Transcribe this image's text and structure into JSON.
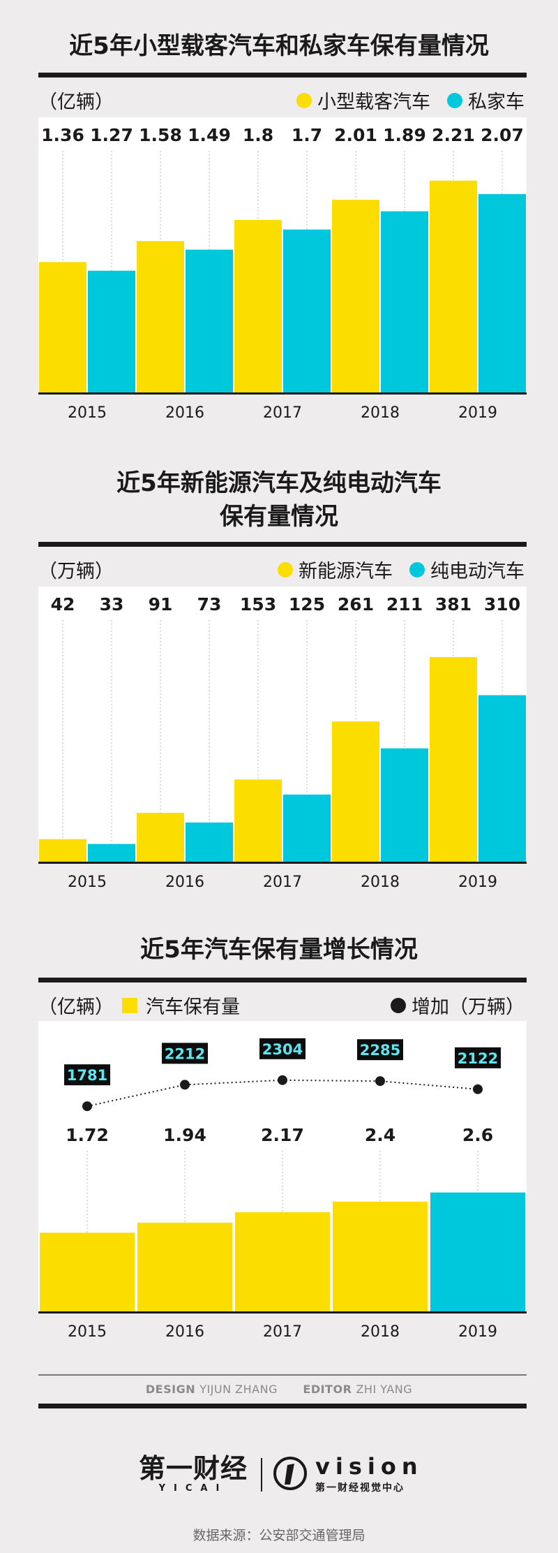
{
  "colors": {
    "yellow": "#fbdd00",
    "cyan": "#00c8dc",
    "dark": "#1a1a1a",
    "panel": "#ffffff",
    "bg": "#eeecec"
  },
  "chart1": {
    "title": "近5年小型载客汽车和私家车保有量情况",
    "unit": "（亿辆）",
    "legend": [
      "小型载客汽车",
      "私家车"
    ]
  },
  "chart2": {
    "title_line1": "近5年新能源汽车及纯电动汽车",
    "title_line2": "保有量情况",
    "unit": "（万辆）",
    "legend": [
      "新能源汽车",
      "纯电动汽车"
    ]
  },
  "chart3": {
    "title": "近5年汽车保有量增长情况",
    "unit": "（亿辆）",
    "legend_bar": "汽车保有量",
    "legend_line": "增加（万辆）"
  },
  "chart_data": [
    {
      "type": "bar",
      "categories": [
        "2015",
        "2016",
        "2017",
        "2018",
        "2019"
      ],
      "series": [
        {
          "name": "小型载客汽车",
          "values": [
            1.36,
            1.58,
            1.8,
            2.01,
            2.21
          ],
          "labels": [
            "1.36",
            "1.58",
            "1.8",
            "2.01",
            "2.21"
          ],
          "color": "#fbdd00"
        },
        {
          "name": "私家车",
          "values": [
            1.27,
            1.49,
            1.7,
            1.89,
            2.07
          ],
          "labels": [
            "1.27",
            "1.49",
            "1.7",
            "1.89",
            "2.07"
          ],
          "color": "#00c8dc"
        }
      ],
      "ylim": [
        0,
        2.55
      ]
    },
    {
      "type": "bar",
      "categories": [
        "2015",
        "2016",
        "2017",
        "2018",
        "2019"
      ],
      "series": [
        {
          "name": "新能源汽车",
          "values": [
            42,
            91,
            153,
            261,
            381
          ],
          "labels": [
            "42",
            "91",
            "153",
            "261",
            "381"
          ],
          "color": "#fbdd00"
        },
        {
          "name": "纯电动汽车",
          "values": [
            33,
            73,
            125,
            211,
            310
          ],
          "labels": [
            "33",
            "73",
            "125",
            "211",
            "310"
          ],
          "color": "#00c8dc"
        }
      ],
      "ylim": [
        0,
        455
      ]
    },
    {
      "type": "bar",
      "categories": [
        "2015",
        "2016",
        "2017",
        "2018",
        "2019"
      ],
      "series": [
        {
          "name": "汽车保有量",
          "values": [
            1.72,
            1.94,
            2.17,
            2.4,
            2.6
          ],
          "labels": [
            "1.72",
            "1.94",
            "2.17",
            "2.4",
            "2.6"
          ],
          "colors": [
            "#fbdd00",
            "#fbdd00",
            "#fbdd00",
            "#fbdd00",
            "#00c8dc"
          ]
        },
        {
          "name": "增加（万辆）",
          "type": "line",
          "values": [
            1781,
            2212,
            2304,
            2285,
            2122
          ],
          "labels": [
            "1781",
            "2212",
            "2304",
            "2285",
            "2122"
          ]
        }
      ],
      "ylim": [
        0,
        6.2
      ]
    }
  ],
  "credits": {
    "design_label": "DESIGN",
    "design_name": "YIJUN ZHANG",
    "editor_label": "EDITOR",
    "editor_name": "ZHI YANG"
  },
  "brand": {
    "yicai_cn": "第一财经",
    "yicai_en": "YICAI",
    "vision": "vision",
    "vision_sub": "第一财经视觉中心"
  },
  "source": "数据来源：公安部交通管理局"
}
